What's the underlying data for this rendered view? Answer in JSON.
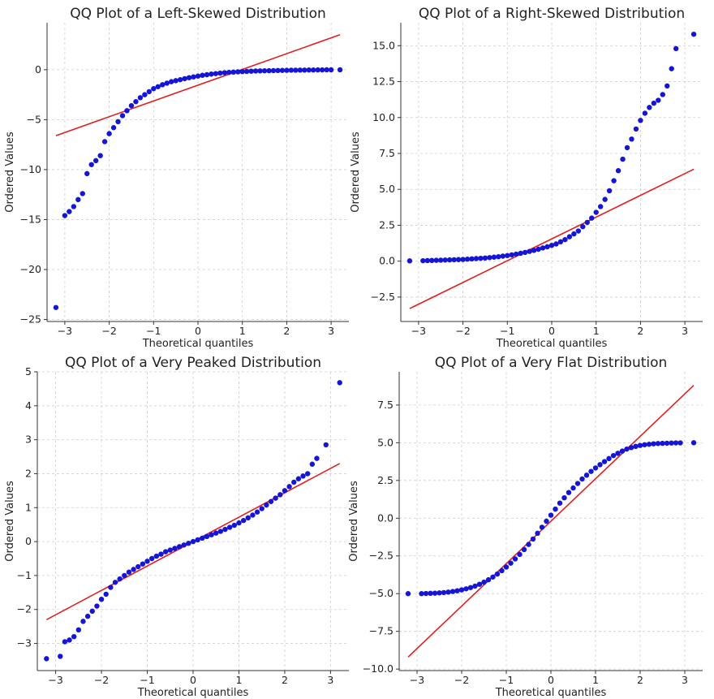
{
  "chart_data": [
    {
      "type": "scatter",
      "id": "left-skewed",
      "title": "QQ Plot of a Left-Skewed Distribution",
      "xlabel": "Theoretical quantiles",
      "ylabel": "Ordered Values",
      "xlim": [
        -3.4,
        3.4
      ],
      "ylim": [
        -25.2,
        4.7
      ],
      "xticks": [
        -3,
        -2,
        -1,
        0,
        1,
        2,
        3
      ],
      "yticks": [
        -25,
        -20,
        -15,
        -10,
        -5,
        0
      ],
      "xtick_labels": [
        "−3",
        "−2",
        "−1",
        "0",
        "1",
        "2",
        "3"
      ],
      "ytick_labels": [
        "−25",
        "−20",
        "−15",
        "−10",
        "−5",
        "0"
      ],
      "line": {
        "x": [
          -3.2,
          3.2
        ],
        "y": [
          -6.6,
          3.5
        ]
      },
      "points": {
        "x": [
          -3.2,
          -3.0,
          -2.9,
          -2.8,
          -2.7,
          -2.6,
          -2.5,
          -2.4,
          -2.3,
          -2.2,
          -2.1,
          -2.0,
          -1.9,
          -1.8,
          -1.7,
          -1.6,
          -1.5,
          -1.4,
          -1.3,
          -1.2,
          -1.1,
          -1.0,
          -0.9,
          -0.8,
          -0.7,
          -0.6,
          -0.5,
          -0.4,
          -0.3,
          -0.2,
          -0.1,
          0.0,
          0.1,
          0.2,
          0.3,
          0.4,
          0.5,
          0.6,
          0.7,
          0.8,
          0.9,
          1.0,
          1.1,
          1.2,
          1.3,
          1.4,
          1.5,
          1.6,
          1.7,
          1.8,
          1.9,
          2.0,
          2.1,
          2.2,
          2.3,
          2.4,
          2.5,
          2.6,
          2.7,
          2.8,
          2.9,
          3.0,
          3.2
        ],
        "y": [
          -23.8,
          -14.6,
          -14.2,
          -13.7,
          -13.0,
          -12.4,
          -10.4,
          -9.5,
          -9.1,
          -8.6,
          -7.2,
          -6.4,
          -5.8,
          -5.2,
          -4.6,
          -4.1,
          -3.6,
          -3.2,
          -2.8,
          -2.5,
          -2.2,
          -1.9,
          -1.7,
          -1.5,
          -1.35,
          -1.2,
          -1.1,
          -1.0,
          -0.9,
          -0.8,
          -0.72,
          -0.64,
          -0.56,
          -0.5,
          -0.44,
          -0.39,
          -0.34,
          -0.3,
          -0.27,
          -0.24,
          -0.21,
          -0.19,
          -0.17,
          -0.15,
          -0.13,
          -0.12,
          -0.11,
          -0.1,
          -0.09,
          -0.08,
          -0.07,
          -0.06,
          -0.05,
          -0.05,
          -0.04,
          -0.04,
          -0.03,
          -0.03,
          -0.02,
          -0.02,
          -0.01,
          -0.01,
          -0.01
        ]
      }
    },
    {
      "type": "scatter",
      "id": "right-skewed",
      "title": "QQ Plot of a Right-Skewed Distribution",
      "xlabel": "Theoretical quantiles",
      "ylabel": "Ordered Values",
      "xlim": [
        -3.4,
        3.4
      ],
      "ylim": [
        -4.2,
        16.6
      ],
      "xticks": [
        -3,
        -2,
        -1,
        0,
        1,
        2,
        3
      ],
      "yticks": [
        -2.5,
        0.0,
        2.5,
        5.0,
        7.5,
        10.0,
        12.5,
        15.0
      ],
      "xtick_labels": [
        "−3",
        "−2",
        "−1",
        "0",
        "1",
        "2",
        "3"
      ],
      "ytick_labels": [
        "−2.5",
        "0.0",
        "2.5",
        "5.0",
        "7.5",
        "10.0",
        "12.5",
        "15.0"
      ],
      "line": {
        "x": [
          -3.2,
          3.2
        ],
        "y": [
          -3.3,
          6.4
        ]
      },
      "points": {
        "x": [
          -3.2,
          -2.9,
          -2.8,
          -2.7,
          -2.6,
          -2.5,
          -2.4,
          -2.3,
          -2.2,
          -2.1,
          -2.0,
          -1.9,
          -1.8,
          -1.7,
          -1.6,
          -1.5,
          -1.4,
          -1.3,
          -1.2,
          -1.1,
          -1.0,
          -0.9,
          -0.8,
          -0.7,
          -0.6,
          -0.5,
          -0.4,
          -0.3,
          -0.2,
          -0.1,
          0.0,
          0.1,
          0.2,
          0.3,
          0.4,
          0.5,
          0.6,
          0.7,
          0.8,
          0.9,
          1.0,
          1.1,
          1.2,
          1.3,
          1.4,
          1.5,
          1.6,
          1.7,
          1.8,
          1.9,
          2.0,
          2.1,
          2.2,
          2.3,
          2.4,
          2.5,
          2.6,
          2.7,
          2.8,
          3.2
        ],
        "y": [
          0.02,
          0.03,
          0.04,
          0.05,
          0.06,
          0.07,
          0.08,
          0.09,
          0.1,
          0.11,
          0.12,
          0.14,
          0.16,
          0.18,
          0.2,
          0.22,
          0.25,
          0.28,
          0.31,
          0.35,
          0.39,
          0.44,
          0.49,
          0.55,
          0.61,
          0.68,
          0.75,
          0.83,
          0.92,
          1.0,
          1.1,
          1.2,
          1.35,
          1.5,
          1.7,
          1.9,
          2.1,
          2.4,
          2.7,
          3.0,
          3.4,
          3.8,
          4.3,
          4.9,
          5.6,
          6.3,
          7.1,
          7.9,
          8.5,
          9.2,
          9.8,
          10.3,
          10.7,
          11.0,
          11.2,
          11.6,
          12.2,
          13.4,
          14.8,
          15.8
        ]
      }
    },
    {
      "type": "scatter",
      "id": "very-peaked",
      "title": "QQ Plot of a Very Peaked Distribution",
      "xlabel": "Theoretical quantiles",
      "ylabel": "Ordered Values",
      "xlim": [
        -3.4,
        3.4
      ],
      "ylim": [
        -3.8,
        5.0
      ],
      "xticks": [
        -3,
        -2,
        -1,
        0,
        1,
        2,
        3
      ],
      "yticks": [
        -3,
        -2,
        -1,
        0,
        1,
        2,
        3,
        4,
        5
      ],
      "xtick_labels": [
        "−3",
        "−2",
        "−1",
        "0",
        "1",
        "2",
        "3"
      ],
      "ytick_labels": [
        "−3",
        "−2",
        "−1",
        "0",
        "1",
        "2",
        "3",
        "4",
        "5"
      ],
      "line": {
        "x": [
          -3.2,
          3.2
        ],
        "y": [
          -2.3,
          2.3
        ]
      },
      "points": {
        "x": [
          -3.2,
          -2.9,
          -2.8,
          -2.7,
          -2.6,
          -2.5,
          -2.4,
          -2.3,
          -2.2,
          -2.1,
          -2.0,
          -1.9,
          -1.8,
          -1.7,
          -1.6,
          -1.5,
          -1.4,
          -1.3,
          -1.2,
          -1.1,
          -1.0,
          -0.9,
          -0.8,
          -0.7,
          -0.6,
          -0.5,
          -0.4,
          -0.3,
          -0.2,
          -0.1,
          0.0,
          0.1,
          0.2,
          0.3,
          0.4,
          0.5,
          0.6,
          0.7,
          0.8,
          0.9,
          1.0,
          1.1,
          1.2,
          1.3,
          1.4,
          1.5,
          1.6,
          1.7,
          1.8,
          1.9,
          2.0,
          2.1,
          2.2,
          2.3,
          2.4,
          2.5,
          2.6,
          2.7,
          2.9,
          3.2
        ],
        "y": [
          -3.45,
          -3.38,
          -2.95,
          -2.9,
          -2.8,
          -2.6,
          -2.35,
          -2.2,
          -2.05,
          -1.9,
          -1.7,
          -1.55,
          -1.35,
          -1.2,
          -1.1,
          -1.0,
          -0.9,
          -0.82,
          -0.74,
          -0.66,
          -0.58,
          -0.5,
          -0.43,
          -0.37,
          -0.3,
          -0.25,
          -0.2,
          -0.15,
          -0.1,
          -0.05,
          0.0,
          0.05,
          0.1,
          0.15,
          0.2,
          0.25,
          0.3,
          0.36,
          0.42,
          0.48,
          0.55,
          0.62,
          0.7,
          0.78,
          0.87,
          0.97,
          1.08,
          1.18,
          1.28,
          1.38,
          1.5,
          1.62,
          1.75,
          1.85,
          1.93,
          2.0,
          2.28,
          2.45,
          2.85,
          4.68
        ]
      }
    },
    {
      "type": "scatter",
      "id": "very-flat",
      "title": "QQ Plot of a Very Flat Distribution",
      "xlabel": "Theoretical quantiles",
      "ylabel": "Ordered Values",
      "xlim": [
        -3.4,
        3.4
      ],
      "ylim": [
        -10.1,
        9.7
      ],
      "xticks": [
        -3,
        -2,
        -1,
        0,
        1,
        2,
        3
      ],
      "yticks": [
        -10.0,
        -7.5,
        -5.0,
        -2.5,
        0.0,
        2.5,
        5.0,
        7.5
      ],
      "xtick_labels": [
        "−3",
        "−2",
        "−1",
        "0",
        "1",
        "2",
        "3"
      ],
      "ytick_labels": [
        "−10.0",
        "−7.5",
        "−5.0",
        "−2.5",
        "0.0",
        "2.5",
        "5.0",
        "7.5"
      ],
      "line": {
        "x": [
          -3.2,
          3.2
        ],
        "y": [
          -9.2,
          8.8
        ]
      },
      "points": {
        "x": [
          -3.2,
          -2.9,
          -2.8,
          -2.7,
          -2.6,
          -2.5,
          -2.4,
          -2.3,
          -2.2,
          -2.1,
          -2.0,
          -1.9,
          -1.8,
          -1.7,
          -1.6,
          -1.5,
          -1.4,
          -1.3,
          -1.2,
          -1.1,
          -1.0,
          -0.9,
          -0.8,
          -0.7,
          -0.6,
          -0.5,
          -0.4,
          -0.3,
          -0.2,
          -0.1,
          0.0,
          0.1,
          0.2,
          0.3,
          0.4,
          0.5,
          0.6,
          0.7,
          0.8,
          0.9,
          1.0,
          1.1,
          1.2,
          1.3,
          1.4,
          1.5,
          1.6,
          1.7,
          1.8,
          1.9,
          2.0,
          2.1,
          2.2,
          2.3,
          2.4,
          2.5,
          2.6,
          2.7,
          2.8,
          2.9,
          3.2
        ],
        "y": [
          -5.0,
          -5.0,
          -4.99,
          -4.98,
          -4.97,
          -4.95,
          -4.93,
          -4.9,
          -4.86,
          -4.81,
          -4.75,
          -4.68,
          -4.6,
          -4.5,
          -4.38,
          -4.24,
          -4.08,
          -3.9,
          -3.7,
          -3.48,
          -3.24,
          -2.98,
          -2.7,
          -2.4,
          -2.08,
          -1.74,
          -1.38,
          -1.0,
          -0.6,
          -0.2,
          0.2,
          0.6,
          1.0,
          1.35,
          1.7,
          2.0,
          2.3,
          2.6,
          2.85,
          3.1,
          3.33,
          3.55,
          3.75,
          3.95,
          4.15,
          4.3,
          4.45,
          4.58,
          4.68,
          4.76,
          4.82,
          4.87,
          4.9,
          4.93,
          4.95,
          4.96,
          4.97,
          4.98,
          4.99,
          4.99,
          5.0
        ]
      }
    }
  ]
}
